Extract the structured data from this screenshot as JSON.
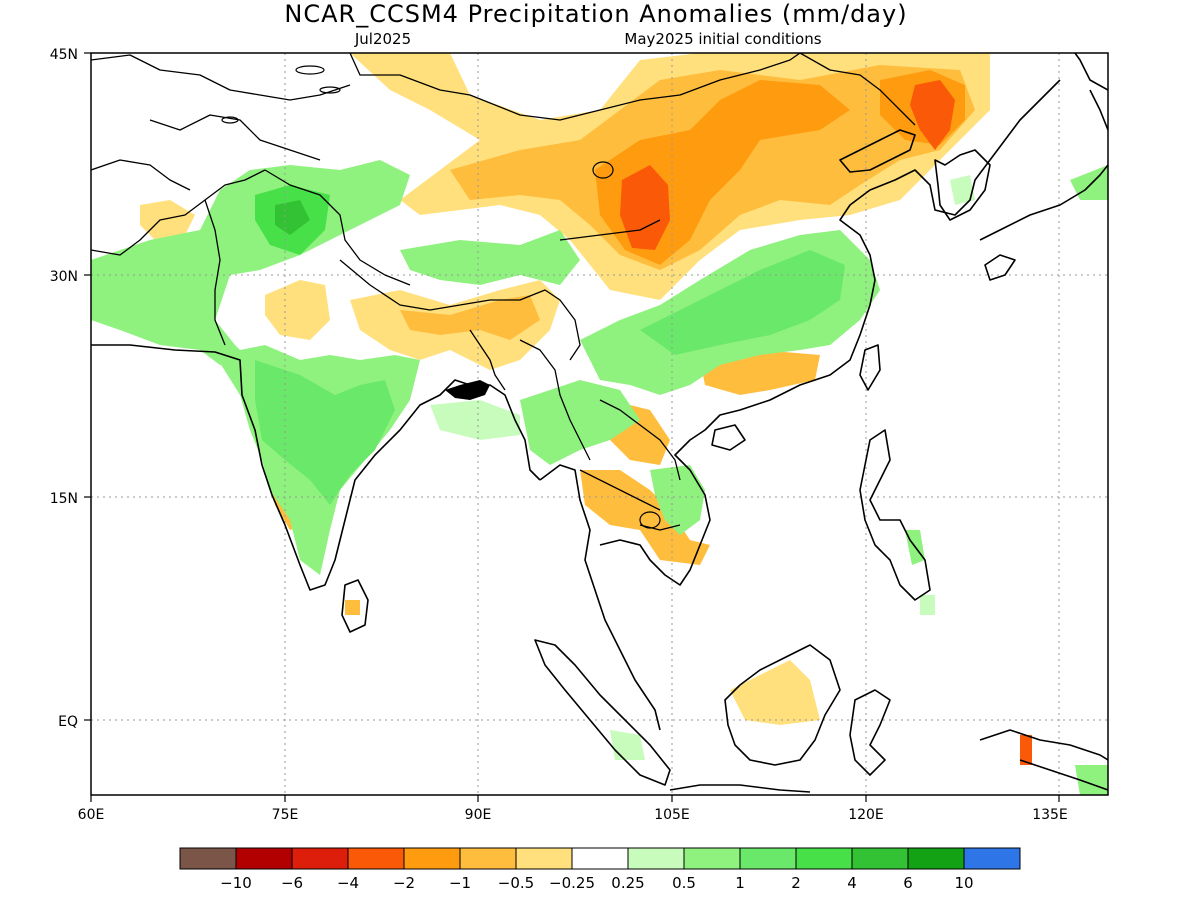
{
  "title": "NCAR_CCSM4 Precipitation Anomalies (mm/day)",
  "subtitle_left": "Jul2025",
  "subtitle_right": "May2025 initial conditions",
  "lat_ticks": [
    "45N",
    "30N",
    "15N",
    "EQ"
  ],
  "lon_ticks": [
    "60E",
    "75E",
    "90E",
    "105E",
    "120E",
    "135E"
  ],
  "colorbar": {
    "colors": [
      "#7b5547",
      "#b20000",
      "#dc1e0a",
      "#fa5a08",
      "#ff9b0e",
      "#ffbd3e",
      "#ffe07c",
      "#ffffff",
      "#c8fcbc",
      "#8ff27f",
      "#6ae86a",
      "#48e048",
      "#33c233",
      "#13a213",
      "#2e76e8"
    ],
    "labels": [
      "−10",
      "−6",
      "−4",
      "−2",
      "−1",
      "−0.5",
      "−0.25",
      "0.25",
      "0.5",
      "1",
      "2",
      "4",
      "6",
      "10"
    ]
  },
  "legend_meaning": {
    "dry": [
      "#ffe07c",
      "#ffbd3e",
      "#ff9b0e",
      "#fa5a08"
    ],
    "wet": [
      "#c8fcbc",
      "#8ff27f",
      "#6ae86a",
      "#48e048",
      "#33c233"
    ]
  }
}
